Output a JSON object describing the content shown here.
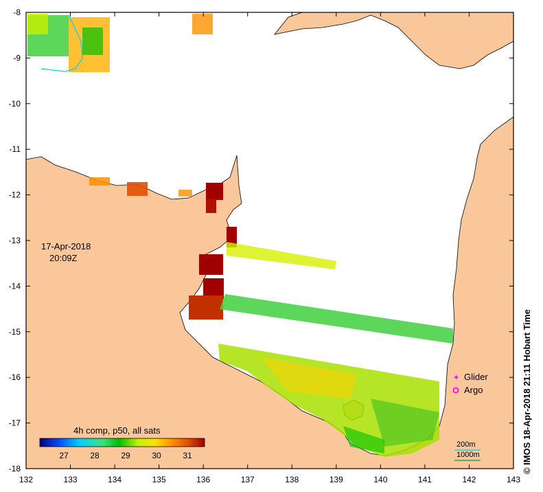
{
  "map": {
    "date": "17-Apr-2018",
    "time": "20:09Z",
    "colorbar_title": "4h comp, p50, all sats",
    "colorbar_ticks": [
      "27",
      "28",
      "29",
      "30",
      "31"
    ],
    "legend": {
      "glider": "Glider",
      "argo": "Argo"
    },
    "scale": {
      "contour_200": "200m",
      "contour_1000": "1000m"
    },
    "credit": "© IMOS 18-Apr-2018 21:11 Hobart Time",
    "x_ticks": [
      "132",
      "133",
      "134",
      "135",
      "136",
      "137",
      "138",
      "139",
      "140",
      "141",
      "142",
      "143"
    ],
    "y_ticks": [
      "-8",
      "-9",
      "-10",
      "-11",
      "-12",
      "-13",
      "-14",
      "-15",
      "-16",
      "-17",
      "-18"
    ],
    "colors": {
      "land": "#f9c79a",
      "sea_no_data": "#ffffff",
      "colormap": [
        "#00007f",
        "#0050ff",
        "#00d0ff",
        "#40e080",
        "#00c000",
        "#c8f000",
        "#ffe000",
        "#ff9000",
        "#e05000",
        "#a00000"
      ]
    }
  }
}
